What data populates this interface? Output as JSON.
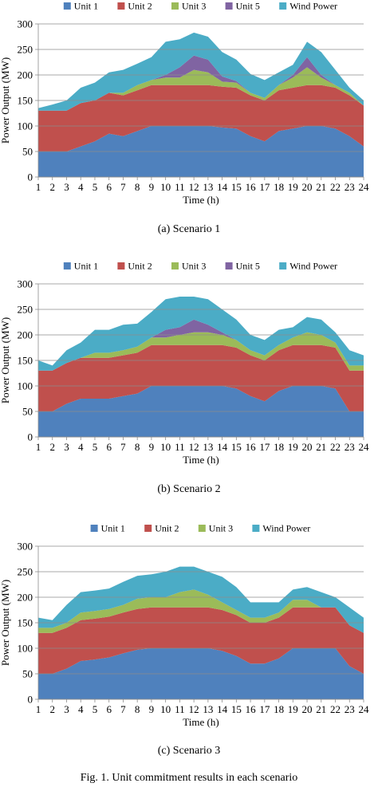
{
  "figure_caption": "Fig. 1.   Unit commitment results in each scenario",
  "chart_data": [
    {
      "type": "area",
      "stacked": true,
      "caption": "(a) Scenario 1",
      "xlabel": "Time (h)",
      "ylabel": "Power Output (MW)",
      "ylim": [
        0,
        300
      ],
      "yticks": [
        0,
        50,
        100,
        150,
        200,
        250,
        300
      ],
      "grid": true,
      "legend_position": "top",
      "x": [
        1,
        2,
        3,
        4,
        5,
        6,
        7,
        8,
        9,
        10,
        11,
        12,
        13,
        14,
        15,
        16,
        17,
        18,
        19,
        20,
        21,
        22,
        23,
        24
      ],
      "series": [
        {
          "name": "Unit 1",
          "color": "#4f81bd",
          "values": [
            50,
            50,
            50,
            60,
            70,
            85,
            80,
            90,
            100,
            100,
            100,
            100,
            100,
            97,
            95,
            80,
            70,
            90,
            95,
            100,
            100,
            95,
            80,
            60
          ]
        },
        {
          "name": "Unit 2",
          "color": "#c0504d",
          "values": [
            80,
            80,
            80,
            85,
            80,
            80,
            80,
            80,
            80,
            80,
            80,
            80,
            80,
            80,
            80,
            80,
            80,
            80,
            80,
            80,
            80,
            80,
            80,
            80
          ]
        },
        {
          "name": "Unit 3",
          "color": "#9bbb59",
          "values": [
            0,
            0,
            0,
            0,
            0,
            0,
            5,
            10,
            10,
            15,
            15,
            30,
            25,
            10,
            10,
            5,
            5,
            10,
            20,
            35,
            15,
            5,
            5,
            0
          ]
        },
        {
          "name": "Unit 5",
          "color": "#8064a2",
          "values": [
            0,
            0,
            0,
            0,
            0,
            0,
            0,
            0,
            0,
            5,
            20,
            28,
            25,
            10,
            3,
            0,
            0,
            0,
            5,
            20,
            5,
            0,
            0,
            0
          ]
        },
        {
          "name": "Wind Power",
          "color": "#4bacc6",
          "values": [
            5,
            12,
            20,
            30,
            35,
            40,
            45,
            42,
            45,
            65,
            55,
            45,
            45,
            48,
            42,
            37,
            35,
            25,
            20,
            30,
            45,
            30,
            10,
            10
          ]
        }
      ]
    },
    {
      "type": "area",
      "stacked": true,
      "caption": "(b) Scenario 2",
      "xlabel": "Time (h)",
      "ylabel": "Power Output (MW)",
      "ylim": [
        0,
        300
      ],
      "yticks": [
        0,
        50,
        100,
        150,
        200,
        250,
        300
      ],
      "grid": true,
      "legend_position": "top",
      "x": [
        1,
        2,
        3,
        4,
        5,
        6,
        7,
        8,
        9,
        10,
        11,
        12,
        13,
        14,
        15,
        16,
        17,
        18,
        19,
        20,
        21,
        22,
        23,
        24
      ],
      "series": [
        {
          "name": "Unit 1",
          "color": "#4f81bd",
          "values": [
            50,
            50,
            65,
            75,
            75,
            75,
            80,
            85,
            100,
            100,
            100,
            100,
            100,
            100,
            95,
            80,
            70,
            90,
            100,
            100,
            100,
            95,
            50,
            50
          ]
        },
        {
          "name": "Unit 2",
          "color": "#c0504d",
          "values": [
            80,
            80,
            80,
            80,
            80,
            80,
            80,
            80,
            80,
            80,
            80,
            80,
            80,
            80,
            80,
            80,
            80,
            80,
            80,
            80,
            80,
            80,
            80,
            80
          ]
        },
        {
          "name": "Unit 3",
          "color": "#9bbb59",
          "values": [
            0,
            0,
            0,
            0,
            10,
            10,
            10,
            12,
            15,
            15,
            20,
            25,
            25,
            20,
            15,
            10,
            10,
            10,
            15,
            25,
            20,
            10,
            10,
            10
          ]
        },
        {
          "name": "Unit 5",
          "color": "#8064a2",
          "values": [
            0,
            0,
            0,
            0,
            0,
            0,
            0,
            0,
            0,
            15,
            15,
            25,
            15,
            5,
            0,
            0,
            0,
            0,
            0,
            0,
            0,
            0,
            0,
            0
          ]
        },
        {
          "name": "Wind Power",
          "color": "#4bacc6",
          "values": [
            20,
            10,
            25,
            30,
            45,
            45,
            50,
            45,
            50,
            60,
            60,
            45,
            50,
            45,
            40,
            30,
            30,
            30,
            20,
            30,
            30,
            20,
            30,
            20
          ]
        }
      ]
    },
    {
      "type": "area",
      "stacked": true,
      "caption": "(c) Scenario 3",
      "xlabel": "Time (h)",
      "ylabel": "Power Output (MW)",
      "ylim": [
        0,
        300
      ],
      "yticks": [
        0,
        50,
        100,
        150,
        200,
        250,
        300
      ],
      "grid": true,
      "legend_position": "top",
      "x": [
        1,
        2,
        3,
        4,
        5,
        6,
        7,
        8,
        9,
        10,
        11,
        12,
        13,
        14,
        15,
        16,
        17,
        18,
        19,
        20,
        21,
        22,
        23,
        24
      ],
      "series": [
        {
          "name": "Unit 1",
          "color": "#4f81bd",
          "values": [
            50,
            50,
            60,
            75,
            78,
            82,
            90,
            97,
            100,
            100,
            100,
            100,
            100,
            95,
            85,
            70,
            70,
            80,
            100,
            100,
            100,
            100,
            65,
            50
          ]
        },
        {
          "name": "Unit 2",
          "color": "#c0504d",
          "values": [
            80,
            80,
            80,
            80,
            80,
            80,
            80,
            80,
            80,
            80,
            80,
            80,
            80,
            80,
            80,
            80,
            80,
            80,
            80,
            80,
            80,
            80,
            80,
            80
          ]
        },
        {
          "name": "Unit 3",
          "color": "#9bbb59",
          "values": [
            10,
            10,
            10,
            15,
            15,
            15,
            15,
            20,
            20,
            20,
            30,
            35,
            25,
            15,
            10,
            10,
            10,
            10,
            15,
            15,
            0,
            0,
            0,
            0
          ]
        },
        {
          "name": "Wind Power",
          "color": "#4bacc6",
          "values": [
            20,
            15,
            35,
            40,
            40,
            40,
            45,
            45,
            45,
            50,
            50,
            45,
            45,
            50,
            45,
            30,
            30,
            20,
            20,
            25,
            30,
            20,
            35,
            30
          ]
        }
      ]
    }
  ]
}
